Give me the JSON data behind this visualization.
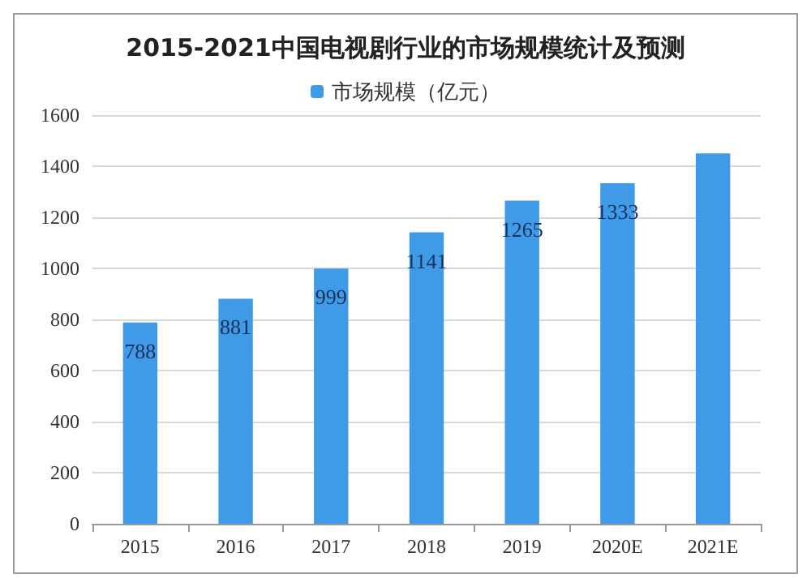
{
  "chart_data": {
    "type": "bar",
    "title": "2015-2021中国电视剧行业的市场规模统计及预测",
    "categories": [
      "2015",
      "2016",
      "2017",
      "2018",
      "2019",
      "2020E",
      "2021E"
    ],
    "series": [
      {
        "name": "市场规模（亿元）",
        "color": "#3f9ae8",
        "values": [
          788,
          881,
          999,
          1141,
          1265,
          1333,
          1450
        ],
        "value_labels": [
          "788",
          "881",
          "999",
          "1141",
          "1265",
          "1333",
          null
        ]
      }
    ],
    "ylim": [
      0,
      1600
    ],
    "yticks": [
      0,
      200,
      400,
      600,
      800,
      1000,
      1200,
      1400,
      1600
    ],
    "grid": "y",
    "legend": "top"
  }
}
